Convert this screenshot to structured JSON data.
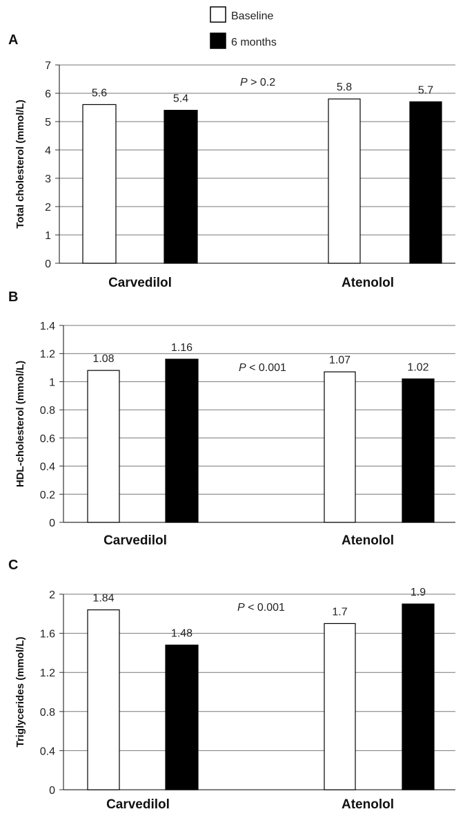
{
  "legend": {
    "items": [
      {
        "label": "Baseline",
        "color": "#ffffff"
      },
      {
        "label": "6 months",
        "color": "#000000"
      }
    ]
  },
  "chart_data": [
    {
      "type": "bar",
      "panel": "A",
      "ylabel": "Total cholesterol (mmol/L)",
      "categories": [
        "Carvedilol",
        "Atenolol"
      ],
      "series": [
        {
          "name": "Baseline",
          "values": [
            5.6,
            5.8
          ],
          "labels": [
            "5.6",
            "5.8"
          ]
        },
        {
          "name": "6 months",
          "values": [
            5.4,
            5.7
          ],
          "labels": [
            "5.4",
            "5.7"
          ]
        }
      ],
      "ylim": [
        0,
        7
      ],
      "yticks": [
        0,
        1,
        2,
        3,
        4,
        5,
        6,
        7
      ],
      "ytick_labels": [
        "0",
        "1",
        "2",
        "3",
        "4",
        "5",
        "6",
        "7"
      ],
      "pvalue": {
        "p": "P",
        "rest": " > 0.2"
      },
      "grid": true
    },
    {
      "type": "bar",
      "panel": "B",
      "ylabel": "HDL-cholesterol (mmol/L)",
      "categories": [
        "Carvedilol",
        "Atenolol"
      ],
      "series": [
        {
          "name": "Baseline",
          "values": [
            1.08,
            1.07
          ],
          "labels": [
            "1.08",
            "1.07"
          ]
        },
        {
          "name": "6 months",
          "values": [
            1.16,
            1.02
          ],
          "labels": [
            "1.16",
            "1.02"
          ]
        }
      ],
      "ylim": [
        0,
        1.4
      ],
      "yticks": [
        0,
        0.2,
        0.4,
        0.6,
        0.8,
        1,
        1.2,
        1.4
      ],
      "ytick_labels": [
        "0",
        "0.2",
        "0.4",
        "0.6",
        "0.8",
        "1",
        "1.2",
        "1.4"
      ],
      "pvalue": {
        "p": "P",
        "rest": " < 0.001"
      },
      "grid": true
    },
    {
      "type": "bar",
      "panel": "C",
      "ylabel": "Triglycerides (mmol/L)",
      "categories": [
        "Carvedilol",
        "Atenolol"
      ],
      "series": [
        {
          "name": "Baseline",
          "values": [
            1.84,
            1.7
          ],
          "labels": [
            "1.84",
            "1.7"
          ]
        },
        {
          "name": "6 months",
          "values": [
            1.48,
            1.9
          ],
          "labels": [
            "1.48",
            "1.9"
          ]
        }
      ],
      "ylim": [
        0,
        2
      ],
      "yticks": [
        0,
        0.4,
        0.8,
        1.2,
        1.6,
        2
      ],
      "ytick_labels": [
        "0",
        "0.4",
        "0.8",
        "1.2",
        "1.6",
        "2"
      ],
      "pvalue": {
        "p": "P",
        "rest": " < 0.001"
      },
      "grid": true
    }
  ]
}
